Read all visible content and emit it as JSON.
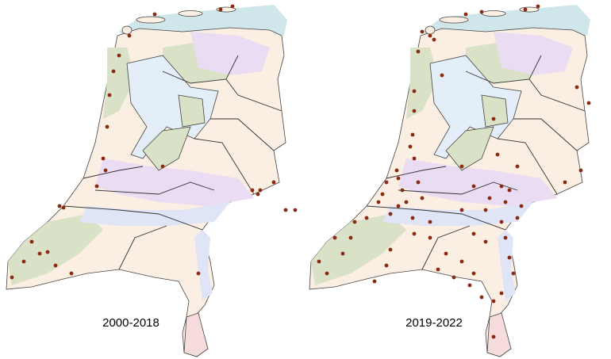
{
  "maps": [
    {
      "label": "2000-2018"
    },
    {
      "label": "2019-2022"
    }
  ]
}
